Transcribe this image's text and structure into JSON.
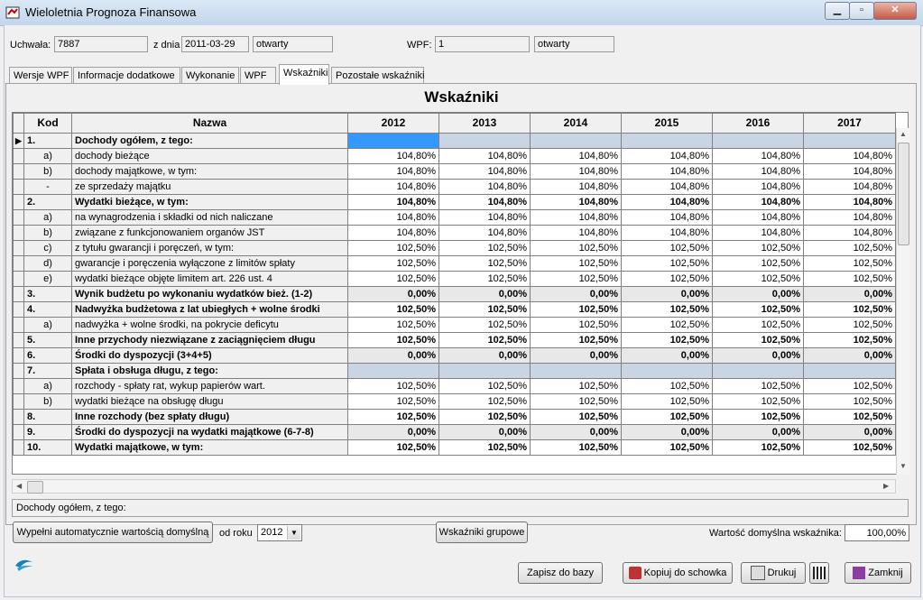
{
  "window": {
    "title": "Wieloletnia Prognoza Finansowa"
  },
  "header": {
    "uchwala_label": "Uchwała:",
    "uchwala_value": "7887",
    "z_dnia_label": "z dnia",
    "date_value": "2011-03-29",
    "status1": "otwarty",
    "wpf_label": "WPF:",
    "wpf_value": "1",
    "status2": "otwarty"
  },
  "tabs": [
    "Wersje WPF",
    "Informacje dodatkowe",
    "Wykonanie",
    "WPF",
    "Wskaźniki",
    "Pozostałe wskaźniki"
  ],
  "active_tab": "Wskaźniki",
  "section_title": "Wskaźniki",
  "grid": {
    "columns": {
      "kod": "Kod",
      "nazwa": "Nazwa",
      "years": [
        "2012",
        "2013",
        "2014",
        "2015",
        "2016",
        "2017"
      ]
    },
    "rows": [
      {
        "kod": "1.",
        "nazwa": "Dochody ogółem, z tego:",
        "bold": true,
        "header": true,
        "values": [
          "",
          "",
          "",
          "",
          "",
          ""
        ]
      },
      {
        "kod": "a)",
        "nazwa": "dochody bieżące",
        "values": [
          "104,80%",
          "104,80%",
          "104,80%",
          "104,80%",
          "104,80%",
          "104,80%"
        ]
      },
      {
        "kod": "b)",
        "nazwa": "dochody majątkowe, w tym:",
        "values": [
          "104,80%",
          "104,80%",
          "104,80%",
          "104,80%",
          "104,80%",
          "104,80%"
        ]
      },
      {
        "kod": "-",
        "nazwa": "ze sprzedaży majątku",
        "values": [
          "104,80%",
          "104,80%",
          "104,80%",
          "104,80%",
          "104,80%",
          "104,80%"
        ]
      },
      {
        "kod": "2.",
        "nazwa": "Wydatki bieżące, w tym:",
        "bold": true,
        "values": [
          "104,80%",
          "104,80%",
          "104,80%",
          "104,80%",
          "104,80%",
          "104,80%"
        ]
      },
      {
        "kod": "a)",
        "nazwa": "na wynagrodzenia i składki od nich naliczane",
        "values": [
          "104,80%",
          "104,80%",
          "104,80%",
          "104,80%",
          "104,80%",
          "104,80%"
        ]
      },
      {
        "kod": "b)",
        "nazwa": "związane z funkcjonowaniem organów JST",
        "values": [
          "104,80%",
          "104,80%",
          "104,80%",
          "104,80%",
          "104,80%",
          "104,80%"
        ]
      },
      {
        "kod": "c)",
        "nazwa": "z tytułu gwarancji i poręczeń, w tym:",
        "values": [
          "102,50%",
          "102,50%",
          "102,50%",
          "102,50%",
          "102,50%",
          "102,50%"
        ]
      },
      {
        "kod": "d)",
        "nazwa": "gwarancje i poręczenia wyłączone z limitów spłaty",
        "values": [
          "102,50%",
          "102,50%",
          "102,50%",
          "102,50%",
          "102,50%",
          "102,50%"
        ]
      },
      {
        "kod": "e)",
        "nazwa": "wydatki bieżące objęte limitem art. 226 ust. 4",
        "values": [
          "102,50%",
          "102,50%",
          "102,50%",
          "102,50%",
          "102,50%",
          "102,50%"
        ]
      },
      {
        "kod": "3.",
        "nazwa": "Wynik budżetu po wykonaniu wydatków bież. (1-2)",
        "bold": true,
        "shaded": true,
        "values": [
          "0,00%",
          "0,00%",
          "0,00%",
          "0,00%",
          "0,00%",
          "0,00%"
        ]
      },
      {
        "kod": "4.",
        "nazwa": "Nadwyżka budżetowa z lat ubiegłych + wolne środki",
        "bold": true,
        "values": [
          "102,50%",
          "102,50%",
          "102,50%",
          "102,50%",
          "102,50%",
          "102,50%"
        ]
      },
      {
        "kod": "a)",
        "nazwa": "nadwyżka + wolne środki, na pokrycie deficytu",
        "values": [
          "102,50%",
          "102,50%",
          "102,50%",
          "102,50%",
          "102,50%",
          "102,50%"
        ]
      },
      {
        "kod": "5.",
        "nazwa": "Inne przychody niezwiązane z zaciągnięciem długu",
        "bold": true,
        "values": [
          "102,50%",
          "102,50%",
          "102,50%",
          "102,50%",
          "102,50%",
          "102,50%"
        ]
      },
      {
        "kod": "6.",
        "nazwa": "Środki do dyspozycji (3+4+5)",
        "bold": true,
        "shaded": true,
        "values": [
          "0,00%",
          "0,00%",
          "0,00%",
          "0,00%",
          "0,00%",
          "0,00%"
        ]
      },
      {
        "kod": "7.",
        "nazwa": "Spłata i obsługa długu, z tego:",
        "bold": true,
        "header": true,
        "values": [
          "",
          "",
          "",
          "",
          "",
          ""
        ]
      },
      {
        "kod": "a)",
        "nazwa": "rozchody - spłaty rat, wykup papierów wart.",
        "values": [
          "102,50%",
          "102,50%",
          "102,50%",
          "102,50%",
          "102,50%",
          "102,50%"
        ]
      },
      {
        "kod": "b)",
        "nazwa": "wydatki bieżące na obsługę długu",
        "values": [
          "102,50%",
          "102,50%",
          "102,50%",
          "102,50%",
          "102,50%",
          "102,50%"
        ]
      },
      {
        "kod": "8.",
        "nazwa": "Inne rozchody (bez spłaty długu)",
        "bold": true,
        "values": [
          "102,50%",
          "102,50%",
          "102,50%",
          "102,50%",
          "102,50%",
          "102,50%"
        ]
      },
      {
        "kod": "9.",
        "nazwa": "Środki do dyspozycji na wydatki majątkowe (6-7-8)",
        "bold": true,
        "shaded": true,
        "values": [
          "0,00%",
          "0,00%",
          "0,00%",
          "0,00%",
          "0,00%",
          "0,00%"
        ]
      },
      {
        "kod": "10.",
        "nazwa": "Wydatki majątkowe, w tym:",
        "bold": true,
        "values": [
          "102,50%",
          "102,50%",
          "102,50%",
          "102,50%",
          "102,50%",
          "102,50%"
        ]
      }
    ]
  },
  "status_text": "Dochody ogółem, z tego:",
  "bottom": {
    "fill_button": "Wypełni automatycznie wartością domyślną",
    "od_roku_label": "od roku",
    "od_roku_value": "2012",
    "group_button": "Wskaźniki grupowe",
    "default_label": "Wartość domyślna wskaźnika:",
    "default_value": "100,00%"
  },
  "footer": {
    "save_button": "Zapisz do bazy",
    "copy_button": "Kopiuj do schowka",
    "print_button": "Drukuj",
    "close_button": "Zamknij"
  },
  "colors": {
    "selection": "#3399ff",
    "shaded": "#c9d5e2"
  }
}
